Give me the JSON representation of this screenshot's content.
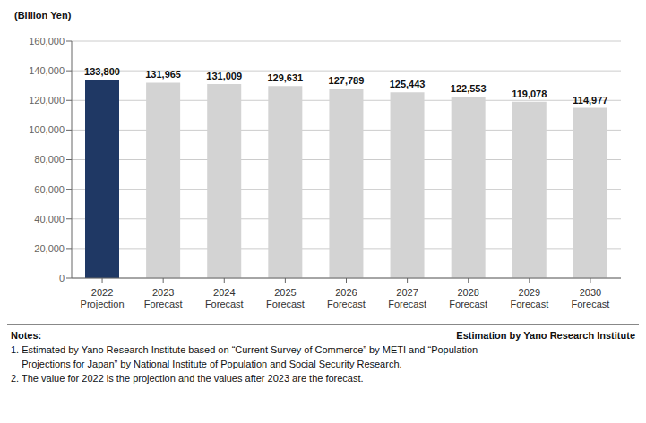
{
  "chart_data": {
    "type": "bar",
    "ylabel": "(Billion Yen)",
    "categories": [
      "2022\nProjection",
      "2023\nForecast",
      "2024\nForecast",
      "2025\nForecast",
      "2026\nForecast",
      "2027\nForecast",
      "2028\nForecast",
      "2029\nForecast",
      "2030\nForecast"
    ],
    "values": [
      133800,
      131965,
      131009,
      129631,
      127789,
      125443,
      122553,
      119078,
      114977
    ],
    "value_labels": [
      "133,800",
      "131,965",
      "131,009",
      "129,631",
      "127,789",
      "125,443",
      "122,553",
      "119,078",
      "114,977"
    ],
    "data_labels": true,
    "colors": [
      "#1f3864",
      "#d3d3d3",
      "#d3d3d3",
      "#d3d3d3",
      "#d3d3d3",
      "#d3d3d3",
      "#d3d3d3",
      "#d3d3d3",
      "#d3d3d3"
    ],
    "ylim": [
      0,
      160000
    ],
    "yticks": [
      0,
      {
        "value": 20000,
        "label": "20,000"
      },
      {
        "value": 40000,
        "label": "40,000"
      },
      {
        "value": 60000,
        "label": "60,000"
      },
      {
        "value": 80000,
        "label": "80,000"
      },
      {
        "value": 100000,
        "label": "100,000"
      },
      {
        "value": 120000,
        "label": "120,000"
      },
      {
        "value": 140000,
        "label": "140,000"
      },
      {
        "value": 160000,
        "label": "160,000"
      }
    ],
    "grid": true,
    "annotations": [
      "Notes:",
      "Estimation by Yano Research Institute",
      "1. Estimated by Yano Research Institute based on “Current Survey of Commerce” by METI and “Population",
      "    Projections for Japan” by National Institute of Population and Social Security Research.",
      "2. The value for 2022 is the projection and the values after 2023 are the forecast."
    ]
  }
}
